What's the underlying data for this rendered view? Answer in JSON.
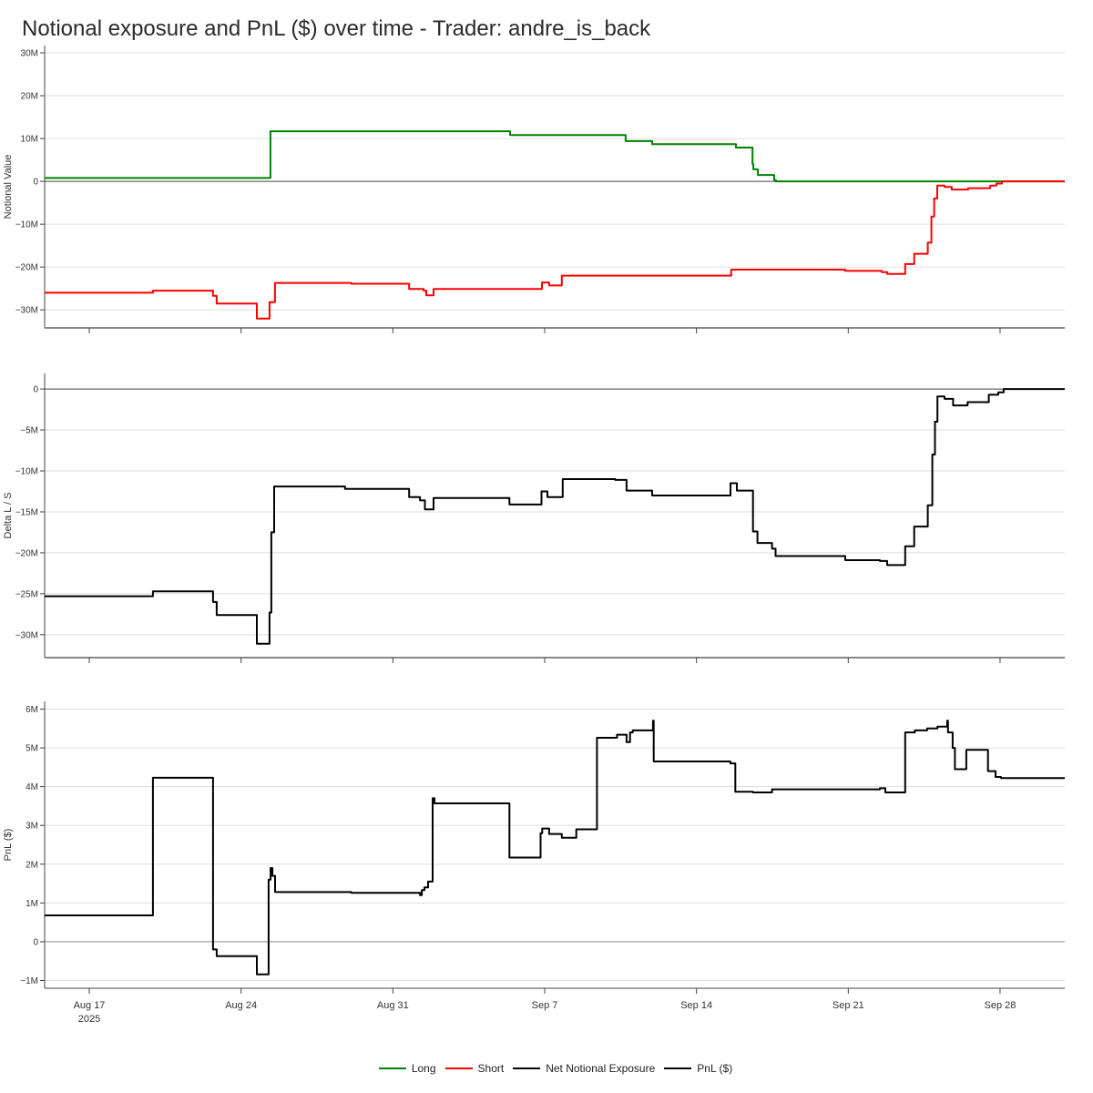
{
  "title": "Notional exposure and PnL ($) over time - Trader: andre_is_back",
  "legend": [
    {
      "label": "Long",
      "color": "#008000"
    },
    {
      "label": "Short",
      "color": "#ff0000"
    },
    {
      "label": "Net Notional Exposure",
      "color": "#000000"
    },
    {
      "label": "PnL ($)",
      "color": "#000000"
    }
  ],
  "x_axis": {
    "xlim": [
      "2025-08-14T22:36",
      "2025-09-30T23:36"
    ],
    "ticks": [
      {
        "date": "2025-08-17T00:00",
        "label": "Aug 17",
        "sublabel": "2025"
      },
      {
        "date": "2025-08-24T00:00",
        "label": "Aug 24",
        "sublabel": ""
      },
      {
        "date": "2025-08-31T00:00",
        "label": "Aug 31",
        "sublabel": ""
      },
      {
        "date": "2025-09-07T00:00",
        "label": "Sep 7",
        "sublabel": ""
      },
      {
        "date": "2025-09-14T00:00",
        "label": "Sep 14",
        "sublabel": ""
      },
      {
        "date": "2025-09-21T00:00",
        "label": "Sep 21",
        "sublabel": ""
      },
      {
        "date": "2025-09-28T00:00",
        "label": "Sep 28",
        "sublabel": ""
      }
    ]
  },
  "chart_data": [
    {
      "type": "line",
      "step": "after",
      "ylabel": "Notional Value",
      "ylim": [
        -34200000,
        31700000
      ],
      "grid": true,
      "yticks": [
        {
          "value": 30000000,
          "label": "30M"
        },
        {
          "value": 20000000,
          "label": "20M"
        },
        {
          "value": 10000000,
          "label": "10M"
        },
        {
          "value": 0,
          "label": "0"
        },
        {
          "value": -10000000,
          "label": "−10M"
        },
        {
          "value": -20000000,
          "label": "−20M"
        },
        {
          "value": -30000000,
          "label": "−30M"
        }
      ],
      "series": [
        {
          "name": "Long",
          "color": "#008000",
          "points": [
            [
              "2025-08-14T22:36",
              800000
            ],
            [
              "2025-08-25T08:30",
              11700000
            ],
            [
              "2025-09-05T09:40",
              10800000
            ],
            [
              "2025-09-10T17:40",
              9400000
            ],
            [
              "2025-09-11T23:00",
              8700000
            ],
            [
              "2025-09-15T19:40",
              7900000
            ],
            [
              "2025-09-16T14:00",
              4000000
            ],
            [
              "2025-09-16T15:00",
              2800000
            ],
            [
              "2025-09-16T20:00",
              1500000
            ],
            [
              "2025-09-17T14:00",
              300000
            ],
            [
              "2025-09-17T16:00",
              0
            ]
          ]
        },
        {
          "name": "Short",
          "color": "#ff0000",
          "points": [
            [
              "2025-08-14T22:36",
              -26000000
            ],
            [
              "2025-08-19T22:30",
              -25500000
            ],
            [
              "2025-08-22T17:00",
              -26700000
            ],
            [
              "2025-08-22T21:00",
              -28500000
            ],
            [
              "2025-08-24T17:30",
              -32000000
            ],
            [
              "2025-08-25T07:30",
              -28200000
            ],
            [
              "2025-08-25T13:30",
              -23700000
            ],
            [
              "2025-08-29T02:00",
              -23900000
            ],
            [
              "2025-08-31T18:00",
              -25100000
            ],
            [
              "2025-09-01T10:00",
              -25500000
            ],
            [
              "2025-09-01T13:00",
              -26600000
            ],
            [
              "2025-09-01T21:00",
              -25100000
            ],
            [
              "2025-09-06T21:00",
              -23600000
            ],
            [
              "2025-09-07T05:00",
              -24300000
            ],
            [
              "2025-09-07T19:00",
              -22000000
            ],
            [
              "2025-09-15T14:30",
              -20600000
            ],
            [
              "2025-09-20T20:30",
              -20900000
            ],
            [
              "2025-09-22T13:00",
              -21200000
            ],
            [
              "2025-09-22T19:00",
              -21600000
            ],
            [
              "2025-09-23T15:00",
              -19300000
            ],
            [
              "2025-09-24T01:00",
              -16900000
            ],
            [
              "2025-09-24T16:00",
              -14300000
            ],
            [
              "2025-09-24T20:00",
              -8200000
            ],
            [
              "2025-09-24T23:00",
              -4000000
            ],
            [
              "2025-09-25T02:30",
              -1000000
            ],
            [
              "2025-09-25T10:30",
              -1300000
            ],
            [
              "2025-09-25T18:30",
              -1900000
            ],
            [
              "2025-09-26T12:40",
              -1600000
            ],
            [
              "2025-09-27T13:00",
              -1000000
            ],
            [
              "2025-09-27T20:00",
              -500000
            ],
            [
              "2025-09-28T02:00",
              0
            ]
          ]
        }
      ]
    },
    {
      "type": "line",
      "step": "after",
      "ylabel": "Delta L / S",
      "ylim": [
        -32800000,
        1900000
      ],
      "grid": true,
      "yticks": [
        {
          "value": 0,
          "label": "0"
        },
        {
          "value": -5000000,
          "label": "−5M"
        },
        {
          "value": -10000000,
          "label": "−10M"
        },
        {
          "value": -15000000,
          "label": "−15M"
        },
        {
          "value": -20000000,
          "label": "−20M"
        },
        {
          "value": -25000000,
          "label": "−25M"
        },
        {
          "value": -30000000,
          "label": "−30M"
        }
      ],
      "series": [
        {
          "name": "Net Notional Exposure",
          "color": "#000000",
          "points": [
            [
              "2025-08-14T22:36",
              -25300000
            ],
            [
              "2025-08-19T22:30",
              -24700000
            ],
            [
              "2025-08-22T17:00",
              -26000000
            ],
            [
              "2025-08-22T21:00",
              -27600000
            ],
            [
              "2025-08-24T17:30",
              -31100000
            ],
            [
              "2025-08-25T07:30",
              -27300000
            ],
            [
              "2025-08-25T09:30",
              -17500000
            ],
            [
              "2025-08-25T12:40",
              -11900000
            ],
            [
              "2025-08-28T19:00",
              -12200000
            ],
            [
              "2025-08-31T18:00",
              -13200000
            ],
            [
              "2025-09-01T06:00",
              -13600000
            ],
            [
              "2025-09-01T11:30",
              -14700000
            ],
            [
              "2025-09-01T21:00",
              -13300000
            ],
            [
              "2025-09-05T09:00",
              -14100000
            ],
            [
              "2025-09-06T20:30",
              -12500000
            ],
            [
              "2025-09-07T03:00",
              -13200000
            ],
            [
              "2025-09-07T20:00",
              -11000000
            ],
            [
              "2025-09-10T06:00",
              -11100000
            ],
            [
              "2025-09-10T18:40",
              -12400000
            ],
            [
              "2025-09-11T23:00",
              -13000000
            ],
            [
              "2025-09-15T13:40",
              -11500000
            ],
            [
              "2025-09-15T20:40",
              -12400000
            ],
            [
              "2025-09-16T14:30",
              -17400000
            ],
            [
              "2025-09-16T19:30",
              -18800000
            ],
            [
              "2025-09-17T11:40",
              -19500000
            ],
            [
              "2025-09-17T15:30",
              -20400000
            ],
            [
              "2025-09-20T20:40",
              -20900000
            ],
            [
              "2025-09-22T11:00",
              -21000000
            ],
            [
              "2025-09-22T19:00",
              -21500000
            ],
            [
              "2025-09-23T15:00",
              -19200000
            ],
            [
              "2025-09-24T01:00",
              -16800000
            ],
            [
              "2025-09-24T16:00",
              -14200000
            ],
            [
              "2025-09-24T21:00",
              -8000000
            ],
            [
              "2025-09-25T00:00",
              -4000000
            ],
            [
              "2025-09-25T02:40",
              -900000
            ],
            [
              "2025-09-25T10:30",
              -1200000
            ],
            [
              "2025-09-25T20:00",
              -2000000
            ],
            [
              "2025-09-26T12:00",
              -1600000
            ],
            [
              "2025-09-27T11:30",
              -700000
            ],
            [
              "2025-09-27T22:00",
              -400000
            ],
            [
              "2025-09-28T04:00",
              0
            ]
          ]
        }
      ]
    },
    {
      "type": "line",
      "step": "after",
      "ylabel": "PnL ($)",
      "ylim": [
        -1200000,
        6200000
      ],
      "grid": true,
      "yticks": [
        {
          "value": 6000000,
          "label": "6M"
        },
        {
          "value": 5000000,
          "label": "5M"
        },
        {
          "value": 4000000,
          "label": "4M"
        },
        {
          "value": 3000000,
          "label": "3M"
        },
        {
          "value": 2000000,
          "label": "2M"
        },
        {
          "value": 1000000,
          "label": "1M"
        },
        {
          "value": 0,
          "label": "0"
        },
        {
          "value": -1000000,
          "label": "−1M"
        }
      ],
      "series": [
        {
          "name": "PnL ($)",
          "color": "#000000",
          "points": [
            [
              "2025-08-14T22:36",
              680000
            ],
            [
              "2025-08-19T22:30",
              4230000
            ],
            [
              "2025-08-22T17:00",
              -200000
            ],
            [
              "2025-08-22T21:00",
              -370000
            ],
            [
              "2025-08-24T17:30",
              -840000
            ],
            [
              "2025-08-25T06:30",
              1600000
            ],
            [
              "2025-08-25T08:40",
              1900000
            ],
            [
              "2025-08-25T10:40",
              1700000
            ],
            [
              "2025-08-25T13:40",
              1280000
            ],
            [
              "2025-08-29T02:00",
              1260000
            ],
            [
              "2025-09-01T06:00",
              1200000
            ],
            [
              "2025-09-01T08:00",
              1330000
            ],
            [
              "2025-09-01T11:00",
              1400000
            ],
            [
              "2025-09-01T15:00",
              1550000
            ],
            [
              "2025-09-01T20:00",
              3700000
            ],
            [
              "2025-09-01T22:00",
              3570000
            ],
            [
              "2025-09-05T09:00",
              2170000
            ],
            [
              "2025-09-06T19:30",
              2800000
            ],
            [
              "2025-09-06T21:20",
              2920000
            ],
            [
              "2025-09-07T05:00",
              2780000
            ],
            [
              "2025-09-07T19:00",
              2680000
            ],
            [
              "2025-09-08T11:00",
              2900000
            ],
            [
              "2025-09-09T09:50",
              5260000
            ],
            [
              "2025-09-10T08:00",
              5340000
            ],
            [
              "2025-09-10T18:40",
              5150000
            ],
            [
              "2025-09-10T22:30",
              5400000
            ],
            [
              "2025-09-11T01:30",
              5450000
            ],
            [
              "2025-09-11T23:50",
              5700000
            ],
            [
              "2025-09-12T00:40",
              4650000
            ],
            [
              "2025-09-15T13:30",
              4600000
            ],
            [
              "2025-09-15T19:00",
              3870000
            ],
            [
              "2025-09-16T14:30",
              3850000
            ],
            [
              "2025-09-17T11:40",
              3930000
            ],
            [
              "2025-09-22T11:00",
              3960000
            ],
            [
              "2025-09-22T17:00",
              3850000
            ],
            [
              "2025-09-23T15:00",
              5400000
            ],
            [
              "2025-09-24T01:40",
              5450000
            ],
            [
              "2025-09-24T15:20",
              5500000
            ],
            [
              "2025-09-25T02:40",
              5550000
            ],
            [
              "2025-09-25T13:30",
              5700000
            ],
            [
              "2025-09-25T14:20",
              5400000
            ],
            [
              "2025-09-25T19:30",
              5000000
            ],
            [
              "2025-09-25T22:00",
              4450000
            ],
            [
              "2025-09-26T10:40",
              4950000
            ],
            [
              "2025-09-27T10:40",
              4400000
            ],
            [
              "2025-09-27T19:00",
              4250000
            ],
            [
              "2025-09-28T01:00",
              4220000
            ]
          ]
        }
      ]
    }
  ]
}
